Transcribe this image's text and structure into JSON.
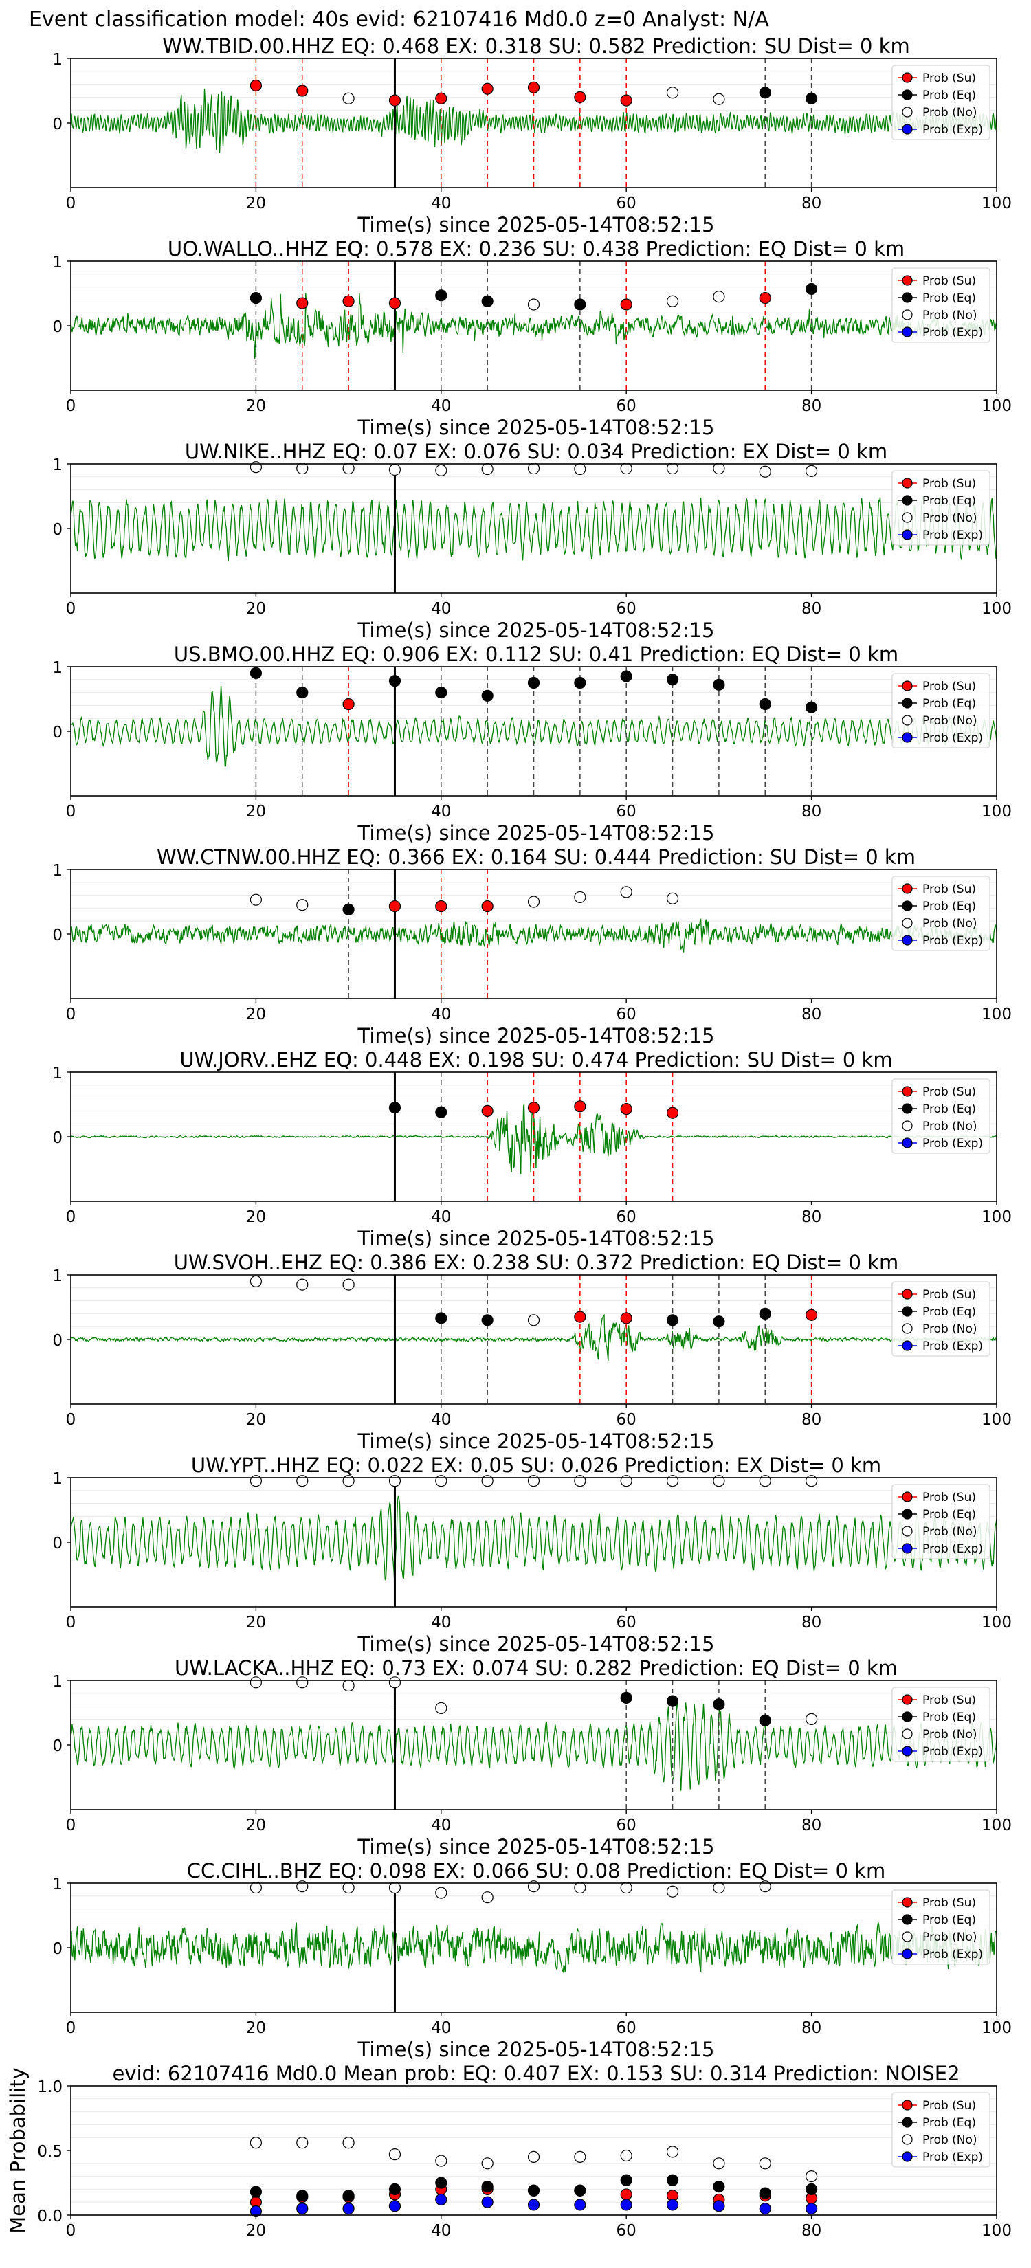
{
  "figure_title": "Event classification model: 40s evid: 62107416 Md0.0 z=0 Analyst: N/A",
  "colors": {
    "trace": "#008000",
    "su": "#ff0000",
    "eq": "#000000",
    "no": "#ffffff",
    "exp": "#0000ff",
    "su_line": "#ff0000",
    "eq_line": "#404040",
    "origin_line": "#000000"
  },
  "legend": [
    "Prob (Su)",
    "Prob (Eq)",
    "Prob (No)",
    "Prob (Exp)"
  ],
  "chart_data": [
    {
      "type": "line",
      "title": "WW.TBID.00.HHZ   EQ: 0.468   EX: 0.318   SU: 0.582   Prediction: SU    Dist= 0 km",
      "xlabel": "Time(s) since 2025-05-14T08:52:15",
      "ylabel": "",
      "xlim": [
        0,
        100
      ],
      "ylim": [
        -1,
        1
      ],
      "xticks": [
        "0",
        "20",
        "40",
        "60",
        "80",
        "100"
      ],
      "yticks": [
        "1",
        "0"
      ],
      "origin_time": 35,
      "waveform": {
        "style": "emergent",
        "amp": 0.25,
        "bursts": [
          [
            10,
            20,
            0.85
          ],
          [
            33,
            45,
            0.65
          ]
        ]
      },
      "windows": [
        20,
        25,
        30,
        35,
        40,
        45,
        50,
        55,
        60,
        65,
        70,
        75,
        80
      ],
      "predicted": [
        "su",
        "su",
        "no",
        "su",
        "su",
        "su",
        "su",
        "su",
        "su",
        "no",
        "no",
        "eq",
        "eq"
      ],
      "probs": [
        0.58,
        0.5,
        0.38,
        0.35,
        0.38,
        0.53,
        0.55,
        0.4,
        0.35,
        0.47,
        0.37,
        0.47,
        0.38
      ]
    },
    {
      "type": "line",
      "title": "UO.WALLO..HHZ   EQ: 0.578   EX: 0.236   SU: 0.438   Prediction: EQ    Dist= 0 km",
      "xlabel": "Time(s) since 2025-05-14T08:52:15",
      "ylabel": "",
      "xlim": [
        0,
        100
      ],
      "ylim": [
        -1,
        1
      ],
      "xticks": [
        "0",
        "20",
        "40",
        "60",
        "80",
        "100"
      ],
      "yticks": [
        "1",
        "0"
      ],
      "origin_time": 35,
      "waveform": {
        "style": "spiky",
        "amp": 0.35,
        "bursts": [
          [
            15,
            40,
            0.7
          ]
        ]
      },
      "windows": [
        20,
        25,
        30,
        35,
        40,
        45,
        50,
        55,
        60,
        65,
        70,
        75,
        80
      ],
      "predicted": [
        "eq",
        "su",
        "su",
        "su",
        "eq",
        "eq",
        "no",
        "eq",
        "su",
        "no",
        "no",
        "su",
        "eq"
      ],
      "probs": [
        0.43,
        0.35,
        0.38,
        0.35,
        0.47,
        0.38,
        0.33,
        0.33,
        0.33,
        0.38,
        0.45,
        0.43,
        0.57
      ]
    },
    {
      "type": "line",
      "title": "UW.NIKE..HHZ   EQ: 0.07  EX: 0.076  SU: 0.034   Prediction: EX    Dist= 0 km",
      "xlabel": "Time(s) since 2025-05-14T08:52:15",
      "ylabel": "",
      "xlim": [
        0,
        100
      ],
      "ylim": [
        -1,
        1
      ],
      "xticks": [
        "0",
        "20",
        "40",
        "60",
        "80",
        "100"
      ],
      "yticks": [
        "1",
        "0"
      ],
      "origin_time": 35,
      "waveform": {
        "style": "low",
        "amp": 0.55,
        "bursts": []
      },
      "windows": [
        20,
        25,
        30,
        35,
        40,
        45,
        50,
        55,
        60,
        65,
        70,
        75,
        80
      ],
      "predicted": [
        "no",
        "no",
        "no",
        "no",
        "no",
        "no",
        "no",
        "no",
        "no",
        "no",
        "no",
        "no",
        "no"
      ],
      "probs": [
        0.95,
        0.93,
        0.93,
        0.91,
        0.9,
        0.92,
        0.93,
        0.92,
        0.93,
        0.93,
        0.93,
        0.88,
        0.89
      ]
    },
    {
      "type": "line",
      "title": "US.BMO.00.HHZ   EQ: 0.906  EX: 0.112  SU: 0.41   Prediction: EQ    Dist= 0 km",
      "xlabel": "Time(s) since 2025-05-14T08:52:15",
      "ylabel": "",
      "xlim": [
        0,
        100
      ],
      "ylim": [
        -1,
        1
      ],
      "xticks": [
        "0",
        "20",
        "40",
        "60",
        "80",
        "100"
      ],
      "yticks": [
        "1",
        "0"
      ],
      "origin_time": 35,
      "waveform": {
        "style": "low",
        "amp": 0.25,
        "bursts": [
          [
            14,
            18,
            0.9
          ]
        ]
      },
      "windows": [
        20,
        25,
        30,
        35,
        40,
        45,
        50,
        55,
        60,
        65,
        70,
        75,
        80
      ],
      "predicted": [
        "eq",
        "eq",
        "su",
        "eq",
        "eq",
        "eq",
        "eq",
        "eq",
        "eq",
        "eq",
        "eq",
        "eq",
        "eq"
      ],
      "probs": [
        0.9,
        0.6,
        0.42,
        0.78,
        0.6,
        0.55,
        0.75,
        0.75,
        0.85,
        0.8,
        0.72,
        0.42,
        0.37
      ]
    },
    {
      "type": "line",
      "title": "WW.CTNW.00.HHZ   EQ: 0.366  EX: 0.164  SU: 0.444   Prediction: SU    Dist= 0 km",
      "xlabel": "Time(s) since 2025-05-14T08:52:15",
      "ylabel": "",
      "xlim": [
        0,
        100
      ],
      "ylim": [
        -1,
        1
      ],
      "xticks": [
        "0",
        "20",
        "40",
        "60",
        "80",
        "100"
      ],
      "yticks": [
        "1",
        "0"
      ],
      "origin_time": 35,
      "waveform": {
        "style": "noisy",
        "amp": 0.2,
        "bursts": [
          [
            38,
            48,
            0.3
          ],
          [
            62,
            70,
            0.35
          ]
        ]
      },
      "windows": [
        20,
        25,
        30,
        35,
        40,
        45,
        50,
        55,
        60,
        65
      ],
      "predicted": [
        "no",
        "no",
        "eq",
        "su",
        "su",
        "su",
        "no",
        "no",
        "no",
        "no"
      ],
      "probs": [
        0.53,
        0.45,
        0.38,
        0.43,
        0.43,
        0.43,
        0.5,
        0.57,
        0.65,
        0.55
      ]
    },
    {
      "type": "line",
      "title": "UW.JORV..EHZ   EQ: 0.448  EX: 0.198  SU: 0.474   Prediction: SU    Dist= 0 km",
      "xlabel": "Time(s) since 2025-05-14T08:52:15",
      "ylabel": "",
      "xlim": [
        0,
        100
      ],
      "ylim": [
        -1,
        1
      ],
      "xticks": [
        "0",
        "20",
        "40",
        "60",
        "80",
        "100"
      ],
      "yticks": [
        "1",
        "0"
      ],
      "origin_time": 35,
      "waveform": {
        "style": "quiet",
        "amp": 0.02,
        "bursts": [
          [
            45,
            53,
            0.95
          ],
          [
            53,
            62,
            0.45
          ]
        ]
      },
      "windows": [
        35,
        40,
        45,
        50,
        55,
        60,
        65
      ],
      "predicted": [
        "eq",
        "eq",
        "su",
        "su",
        "su",
        "su",
        "su"
      ],
      "probs": [
        0.45,
        0.38,
        0.4,
        0.45,
        0.47,
        0.43,
        0.37
      ]
    },
    {
      "type": "line",
      "title": "UW.SVOH..EHZ   EQ: 0.386  EX: 0.238  SU: 0.372   Prediction: EQ    Dist= 0 km",
      "xlabel": "Time(s) since 2025-05-14T08:52:15",
      "ylabel": "",
      "xlim": [
        0,
        100
      ],
      "ylim": [
        -1,
        1
      ],
      "xticks": [
        "0",
        "20",
        "40",
        "60",
        "80",
        "100"
      ],
      "yticks": [
        "1",
        "0"
      ],
      "origin_time": 35,
      "waveform": {
        "style": "quiet",
        "amp": 0.04,
        "bursts": [
          [
            54,
            62,
            0.45
          ],
          [
            64,
            68,
            0.3
          ],
          [
            72,
            77,
            0.35
          ]
        ]
      },
      "windows": [
        20,
        25,
        30,
        40,
        45,
        50,
        55,
        60,
        65,
        70,
        75,
        80
      ],
      "predicted": [
        "no",
        "no",
        "no",
        "eq",
        "eq",
        "no",
        "su",
        "su",
        "eq",
        "eq",
        "eq",
        "su"
      ],
      "probs": [
        0.9,
        0.85,
        0.85,
        0.33,
        0.3,
        0.3,
        0.35,
        0.33,
        0.3,
        0.28,
        0.4,
        0.38
      ]
    },
    {
      "type": "line",
      "title": "UW.YPT..HHZ   EQ: 0.022  EX: 0.05  SU: 0.026   Prediction: EX    Dist= 0 km",
      "xlabel": "Time(s) since 2025-05-14T08:52:15",
      "ylabel": "",
      "xlim": [
        0,
        100
      ],
      "ylim": [
        -1,
        1
      ],
      "xticks": [
        "0",
        "20",
        "40",
        "60",
        "80",
        "100"
      ],
      "yticks": [
        "1",
        "0"
      ],
      "origin_time": 35,
      "waveform": {
        "style": "low",
        "amp": 0.5,
        "bursts": [
          [
            33,
            38,
            0.85
          ]
        ]
      },
      "windows": [
        20,
        25,
        30,
        35,
        40,
        45,
        50,
        55,
        60,
        65,
        70,
        75,
        80
      ],
      "predicted": [
        "no",
        "no",
        "no",
        "no",
        "no",
        "no",
        "no",
        "no",
        "no",
        "no",
        "no",
        "no",
        "no"
      ],
      "probs": [
        0.95,
        0.95,
        0.95,
        0.95,
        0.95,
        0.95,
        0.95,
        0.95,
        0.95,
        0.95,
        0.95,
        0.95,
        0.95
      ]
    },
    {
      "type": "line",
      "title": "UW.LACKA..HHZ   EQ: 0.73  EX: 0.074  SU: 0.282   Prediction: EQ    Dist= 0 km",
      "xlabel": "Time(s) since 2025-05-14T08:52:15",
      "ylabel": "",
      "xlim": [
        0,
        100
      ],
      "ylim": [
        -1,
        1
      ],
      "xticks": [
        "0",
        "20",
        "40",
        "60",
        "80",
        "100"
      ],
      "yticks": [
        "1",
        "0"
      ],
      "origin_time": 35,
      "waveform": {
        "style": "low",
        "amp": 0.4,
        "bursts": [
          [
            62,
            72,
            0.9
          ]
        ]
      },
      "windows": [
        20,
        25,
        30,
        35,
        40,
        60,
        65,
        70,
        75,
        80
      ],
      "predicted": [
        "no",
        "no",
        "no",
        "no",
        "no",
        "eq",
        "eq",
        "eq",
        "eq",
        "no"
      ],
      "probs": [
        0.97,
        0.97,
        0.92,
        0.97,
        0.57,
        0.73,
        0.68,
        0.63,
        0.38,
        0.4
      ]
    },
    {
      "type": "line",
      "title": "CC.CIHL..BHZ   EQ: 0.098  EX: 0.066  SU: 0.08   Prediction: EQ    Dist= 0 km",
      "xlabel": "Time(s) since 2025-05-14T08:52:15",
      "ylabel": "",
      "xlim": [
        0,
        100
      ],
      "ylim": [
        -1,
        1
      ],
      "xticks": [
        "0",
        "20",
        "40",
        "60",
        "80",
        "100"
      ],
      "yticks": [
        "1",
        "0"
      ],
      "origin_time": 35,
      "waveform": {
        "style": "noisy",
        "amp": 0.45,
        "bursts": []
      },
      "windows": [
        20,
        25,
        30,
        35,
        40,
        45,
        50,
        55,
        60,
        65,
        70,
        75
      ],
      "predicted": [
        "no",
        "no",
        "no",
        "no",
        "no",
        "no",
        "no",
        "no",
        "no",
        "no",
        "no",
        "no"
      ],
      "probs": [
        0.93,
        0.95,
        0.93,
        0.93,
        0.85,
        0.78,
        0.95,
        0.93,
        0.93,
        0.87,
        0.93,
        0.95
      ]
    },
    {
      "type": "scatter",
      "title": "evid: 62107416  Md0.0   Mean prob:   EQ: 0.407  EX: 0.153  SU: 0.314   Prediction: NOISE2",
      "xlabel": "",
      "ylabel": "Mean Probability",
      "xlim": [
        0,
        100
      ],
      "ylim": [
        0,
        1
      ],
      "xticks": [
        "0",
        "20",
        "40",
        "60",
        "80",
        "100"
      ],
      "yticks": [
        "0.0",
        "0.5",
        "1.0"
      ],
      "x": [
        20,
        25,
        30,
        35,
        40,
        45,
        50,
        55,
        60,
        65,
        70,
        75,
        80
      ],
      "series": [
        {
          "name": "Prob (Su)",
          "color": "#ff0000",
          "values": [
            0.1,
            0.14,
            0.14,
            0.16,
            0.2,
            0.2,
            0.19,
            0.19,
            0.16,
            0.15,
            0.12,
            0.15,
            0.13
          ]
        },
        {
          "name": "Prob (Eq)",
          "color": "#000000",
          "values": [
            0.18,
            0.15,
            0.15,
            0.2,
            0.25,
            0.22,
            0.19,
            0.19,
            0.27,
            0.27,
            0.22,
            0.17,
            0.2
          ]
        },
        {
          "name": "Prob (No)",
          "color": "#ffffff",
          "values": [
            0.56,
            0.56,
            0.56,
            0.47,
            0.42,
            0.4,
            0.45,
            0.45,
            0.46,
            0.49,
            0.4,
            0.4,
            0.3
          ]
        },
        {
          "name": "Prob (Exp)",
          "color": "#0000ff",
          "values": [
            0.03,
            0.05,
            0.05,
            0.07,
            0.12,
            0.1,
            0.08,
            0.08,
            0.08,
            0.08,
            0.07,
            0.05,
            0.05
          ]
        }
      ]
    }
  ]
}
